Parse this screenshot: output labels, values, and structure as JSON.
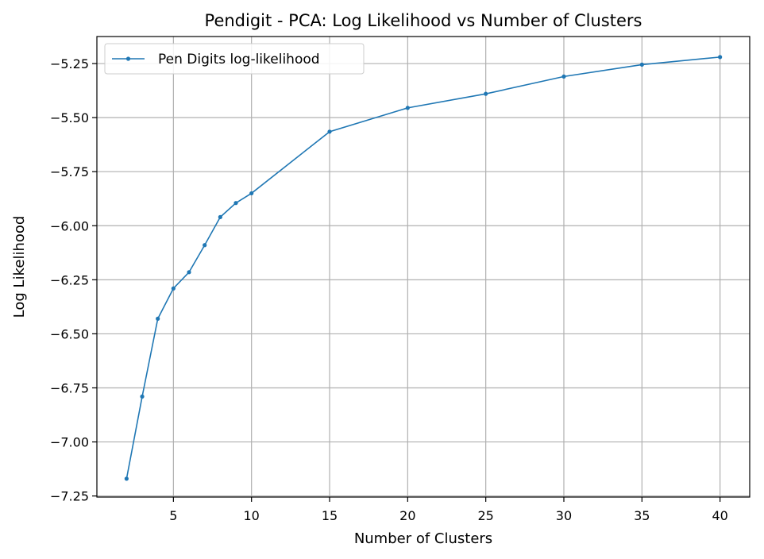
{
  "chart_data": {
    "type": "line",
    "title": "Pendigit - PCA: Log Likelihood vs Number of Clusters",
    "xlabel": "Number of Clusters",
    "ylabel": "Log Likelihood",
    "xlim": [
      0.1,
      41.9
    ],
    "ylim": [
      -7.255,
      -5.125
    ],
    "xticks": [
      5,
      10,
      15,
      20,
      25,
      30,
      35,
      40
    ],
    "xtick_labels": [
      "5",
      "10",
      "15",
      "20",
      "25",
      "30",
      "35",
      "40"
    ],
    "yticks": [
      -5.25,
      -5.5,
      -5.75,
      -6.0,
      -6.25,
      -6.5,
      -6.75,
      -7.0,
      -7.25
    ],
    "ytick_labels": [
      "−5.25",
      "−5.50",
      "−5.75",
      "−6.00",
      "−6.25",
      "−6.50",
      "−6.75",
      "−7.00",
      "−7.25"
    ],
    "grid": true,
    "legend_position": "top-left",
    "series": [
      {
        "name": "Pen Digits log-likelihood",
        "color": "#1f77b4",
        "x": [
          2,
          3,
          4,
          5,
          6,
          7,
          8,
          9,
          10,
          15,
          20,
          25,
          30,
          35,
          40
        ],
        "values": [
          -7.17,
          -6.79,
          -6.43,
          -6.29,
          -6.215,
          -6.09,
          -5.96,
          -5.895,
          -5.85,
          -5.565,
          -5.455,
          -5.39,
          -5.31,
          -5.255,
          -5.22
        ]
      }
    ]
  }
}
